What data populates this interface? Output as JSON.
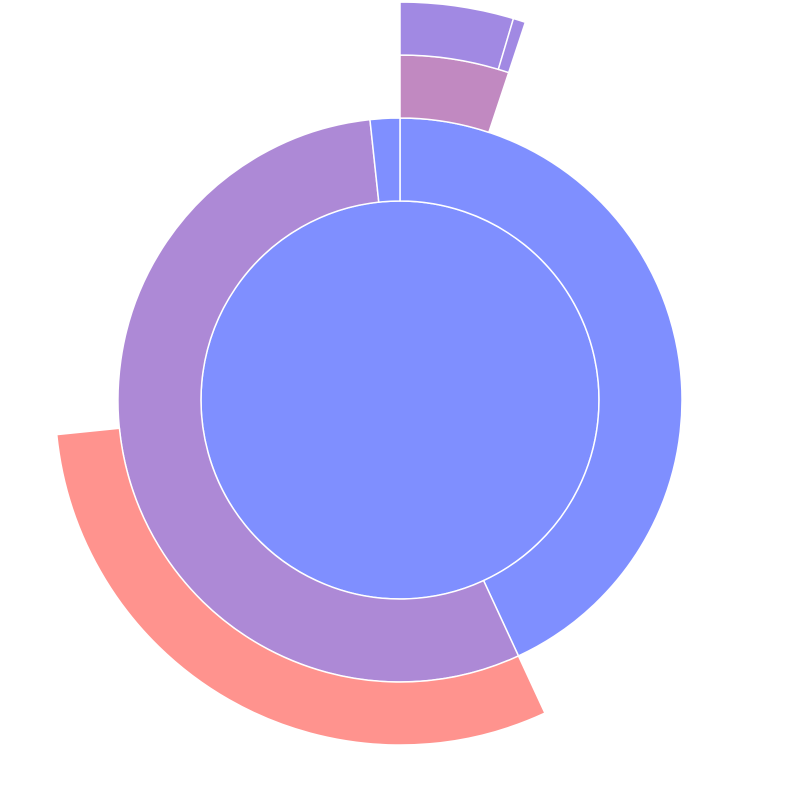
{
  "chart_data": {
    "type": "sunburst",
    "title": "",
    "legend": "none",
    "root": {
      "value": 100,
      "color": "#7f8fff",
      "children": [
        {
          "value": 43.1,
          "color": "#7f8fff",
          "children": [
            {
              "value": 5.1,
              "color": "#c189c1",
              "children": [
                {
                  "value": 4.6,
                  "color": "#a189e3"
                },
                {
                  "value": 0.5,
                  "color": "#a189e3"
                }
              ]
            }
          ]
        },
        {
          "value": 55.2,
          "color": "#ad89d6",
          "children": [
            {
              "value": 30.3,
              "color": "#ff938e"
            }
          ]
        },
        {
          "value": 1.7,
          "color": "#7f8fff",
          "children": []
        }
      ]
    }
  }
}
